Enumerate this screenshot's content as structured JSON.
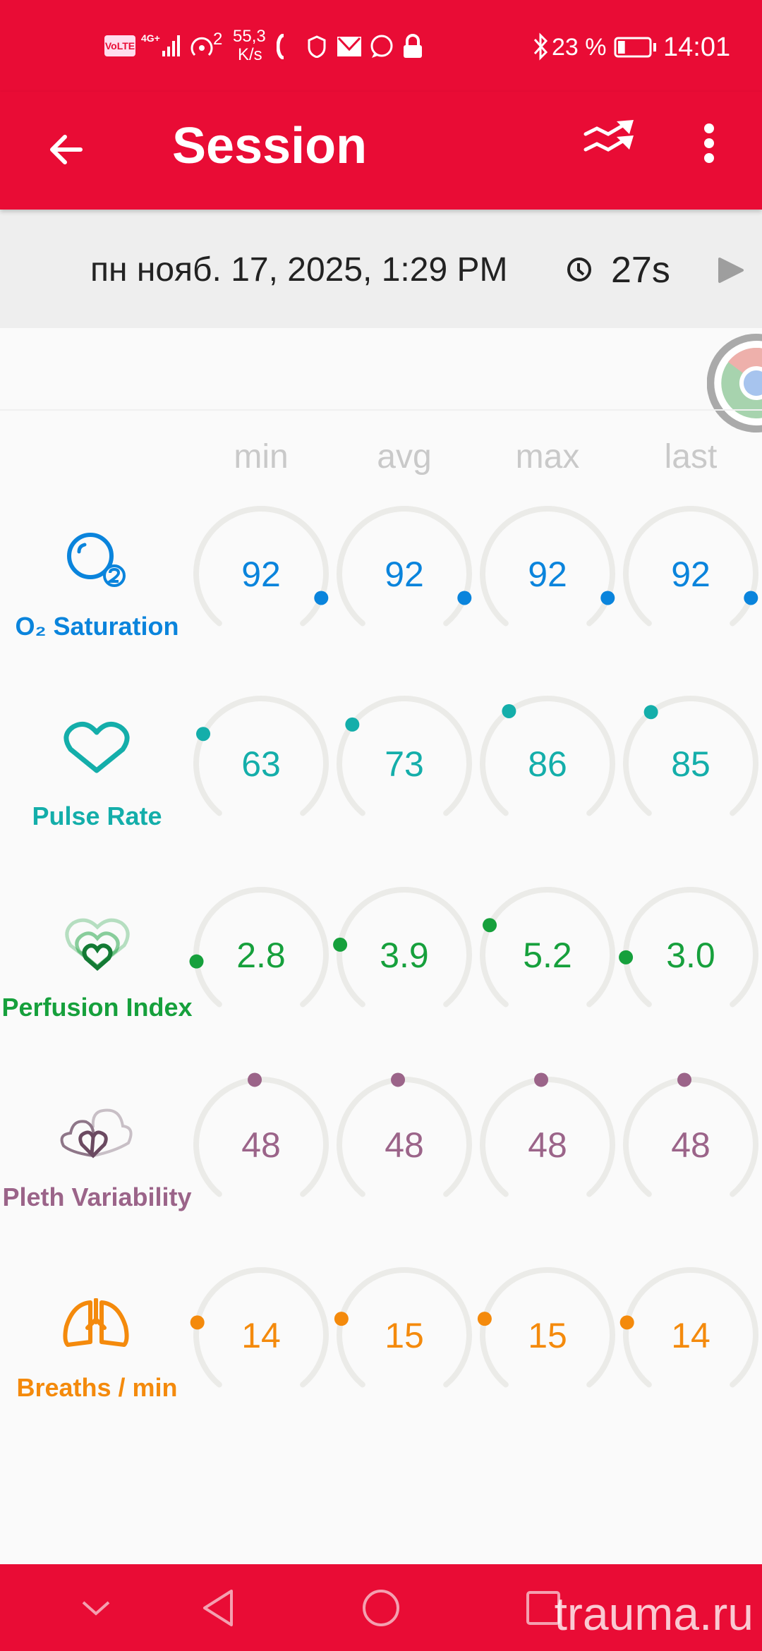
{
  "status_bar": {
    "volte": "VoLTE",
    "network": "4G+",
    "hotspot_count": "2",
    "speed_value": "55,3",
    "speed_unit": "K/s",
    "battery_percent": "23 %",
    "battery_level": 0.23,
    "time": "14:01",
    "icons": [
      "volte-icon",
      "signal-icon",
      "hotspot-icon",
      "vpn-icon",
      "shield-phone-icon",
      "mail-icon",
      "whatsapp-icon",
      "lock-icon",
      "bluetooth-icon",
      "battery-icon"
    ]
  },
  "app_bar": {
    "title": "Session",
    "back_icon": "arrow-left-icon",
    "trend_icon": "trending-up-icon",
    "menu_icon": "more-vert-icon"
  },
  "session": {
    "datetime": "пн нояб. 17, 2025, 1:29 PM",
    "duration": "27s",
    "clock_icon": "clock-icon",
    "play_icon": "play-icon"
  },
  "columns": [
    "min",
    "avg",
    "max",
    "last"
  ],
  "colors": {
    "accent": "#e90c35",
    "track": "#ebebe8"
  },
  "metrics": [
    {
      "label": "O₂ Saturation",
      "icon": "o2-bubble-icon",
      "color": "#0a84dc",
      "values": [
        "92",
        "92",
        "92",
        "92"
      ],
      "levels": [
        0.9,
        0.9,
        0.9,
        0.9
      ]
    },
    {
      "label": "Pulse Rate",
      "icon": "heart-outline-icon",
      "color": "#14aeaa",
      "values": [
        "63",
        "73",
        "86",
        "85"
      ],
      "levels": [
        0.275,
        0.31,
        0.37,
        0.365
      ]
    },
    {
      "label": "Perfusion Index",
      "icon": "perfusion-hearts-icon",
      "color": "#16a03c",
      "values": [
        "2.8",
        "3.9",
        "5.2",
        "3.0"
      ],
      "levels": [
        0.157,
        0.21,
        0.275,
        0.17
      ]
    },
    {
      "label": "Pleth Variability",
      "icon": "pleth-hearts-icon",
      "color": "#9b6489",
      "values": [
        "48",
        "48",
        "48",
        "48"
      ],
      "levels": [
        0.48,
        0.48,
        0.48,
        0.48
      ]
    },
    {
      "label": "Breaths / min",
      "icon": "lungs-icon",
      "color": "#f48a0c",
      "values": [
        "14",
        "15",
        "15",
        "14"
      ],
      "levels": [
        0.218,
        0.23,
        0.23,
        0.218
      ]
    }
  ],
  "nav_bar": {
    "icons": [
      "chevron-down-icon",
      "back-triangle-icon",
      "home-circle-icon",
      "recents-square-icon"
    ],
    "watermark": "trauma.ru"
  }
}
